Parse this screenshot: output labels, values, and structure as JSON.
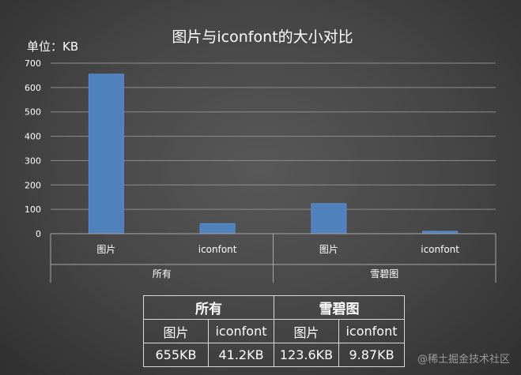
{
  "chart_data": {
    "type": "bar",
    "title": "图片与iconfont的大小对比",
    "unit_label": "单位：KB",
    "ylim": [
      0,
      700
    ],
    "yticks": [
      0,
      100,
      200,
      300,
      400,
      500,
      600,
      700
    ],
    "grid": true,
    "bar_color": "#4f81bd",
    "categories": [
      {
        "group": "所有",
        "label": "图片",
        "value": 655
      },
      {
        "group": "所有",
        "label": "iconfont",
        "value": 41.2
      },
      {
        "group": "雪碧图",
        "label": "图片",
        "value": 123.6
      },
      {
        "group": "雪碧图",
        "label": "iconfont",
        "value": 9.87
      }
    ],
    "groups": [
      "所有",
      "雪碧图"
    ]
  },
  "table": {
    "groups": [
      "所有",
      "雪碧图"
    ],
    "headers": [
      "图片",
      "iconfont",
      "图片",
      "iconfont"
    ],
    "values": [
      "655KB",
      "41.2KB",
      "123.6KB",
      "9.87KB"
    ]
  },
  "watermark": "@稀土掘金技术社区"
}
